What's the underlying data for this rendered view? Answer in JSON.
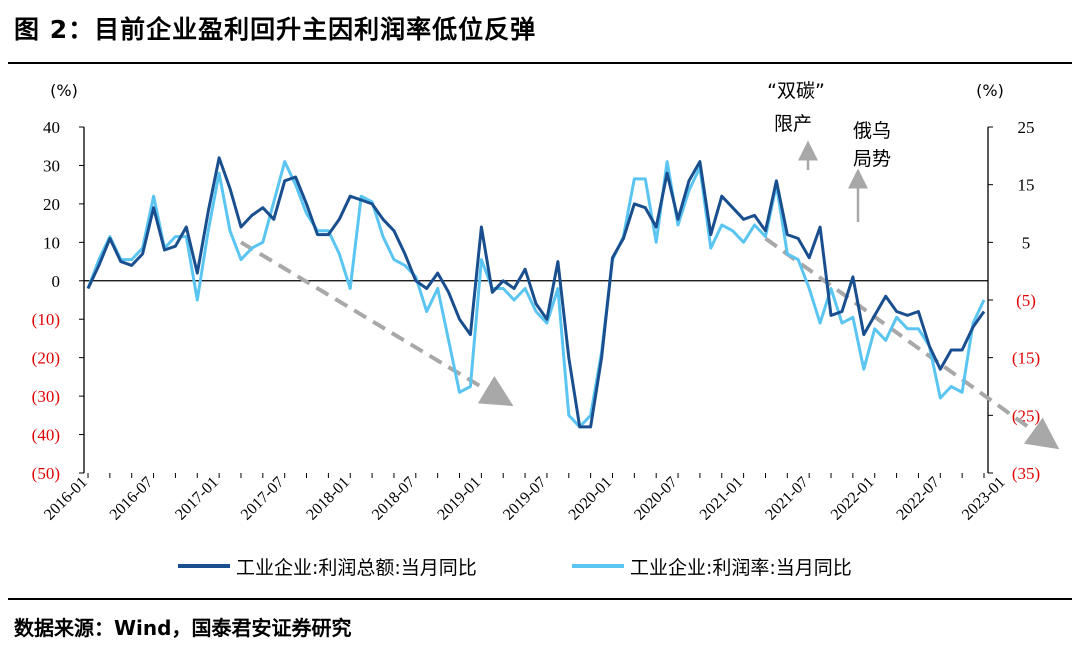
{
  "title": "图 2：目前企业盈利回升主因利润率低位反弹",
  "source": "数据来源：Wind，国泰君安证券研究",
  "colors": {
    "series1": "#1a4f8f",
    "series2": "#5bc5f2",
    "arrow": "#a8a8a8",
    "negative": "#e00000"
  },
  "chart_data": {
    "type": "line",
    "left_axis": {
      "unit": "(%)",
      "range": [
        -50,
        40
      ],
      "ticks": [
        40,
        30,
        20,
        10,
        0,
        -10,
        -20,
        -30,
        -40,
        -50
      ],
      "tick_labels": [
        "40",
        "30",
        "20",
        "10",
        "0",
        "(10)",
        "(20)",
        "(30)",
        "(40)",
        "(50)"
      ]
    },
    "right_axis": {
      "unit": "(%)",
      "range": [
        -35,
        25
      ],
      "ticks": [
        25,
        15,
        5,
        -5,
        -15,
        -25,
        -35
      ],
      "tick_labels": [
        "25",
        "15",
        "5",
        "(5)",
        "(15)",
        "(25)",
        "(35)"
      ]
    },
    "x_tick_labels": [
      "2016-01",
      "2016-07",
      "2017-01",
      "2017-07",
      "2018-01",
      "2018-07",
      "2019-01",
      "2019-07",
      "2020-01",
      "2020-07",
      "2021-01",
      "2021-07",
      "2022-01",
      "2022-07",
      "2023-01"
    ],
    "x_start": "2016-01",
    "series": [
      {
        "name": "工业企业:利润总额:当月同比",
        "axis": "left",
        "values": [
          -2,
          4,
          11,
          5,
          4,
          7,
          19,
          8,
          9,
          14,
          2,
          18,
          32,
          24,
          14,
          17,
          19,
          16,
          26,
          27,
          20,
          12,
          12,
          16,
          22,
          21,
          20,
          16,
          13,
          7,
          0,
          -2,
          2,
          -3,
          -10,
          -14,
          14,
          -3,
          0,
          -2,
          3,
          -6,
          -10,
          5,
          -20,
          -38,
          -38,
          -20,
          6,
          11,
          20,
          19,
          14,
          28,
          16,
          26,
          31,
          12,
          22,
          19,
          16,
          17,
          13,
          26,
          12,
          11,
          6,
          14,
          -9,
          -8,
          1,
          -14,
          -9,
          -4,
          -8,
          -9,
          -8,
          -17,
          -23,
          -18,
          -18,
          -12,
          -8
        ]
      },
      {
        "name": "工业企业:利润率:当月同比",
        "axis": "right",
        "values": [
          -3,
          2,
          6,
          2,
          2,
          4,
          13,
          4,
          6,
          6,
          -5,
          7,
          17,
          7,
          2,
          4,
          5,
          12,
          19,
          15,
          10,
          7,
          7,
          3,
          -3,
          13,
          12,
          6,
          2,
          1,
          -1,
          -7,
          -3,
          -12,
          -21,
          -20,
          2,
          -3,
          -3,
          -5,
          -3,
          -7,
          -9,
          -3,
          -25,
          -27,
          -25,
          -14,
          2,
          6,
          16,
          16,
          5,
          19,
          8,
          14,
          18,
          4,
          8,
          7,
          5,
          8,
          6,
          15,
          3,
          2,
          -3,
          -9,
          -3,
          -9,
          -8,
          -17,
          -10,
          -12,
          -8,
          -10,
          -10,
          -13,
          -22,
          -20,
          -21,
          -9,
          -5
        ]
      }
    ],
    "annotations": [
      "“双碳”",
      "限产",
      "俄乌",
      "局势"
    ],
    "trend_arrows": [
      {
        "from": [
          "2017-03",
          10
        ],
        "to": [
          "2019-03",
          -31
        ]
      },
      {
        "from": [
          "2021-03",
          11
        ],
        "to": [
          "2023-05",
          -42
        ]
      }
    ],
    "grid": false,
    "legend_position": "bottom"
  }
}
